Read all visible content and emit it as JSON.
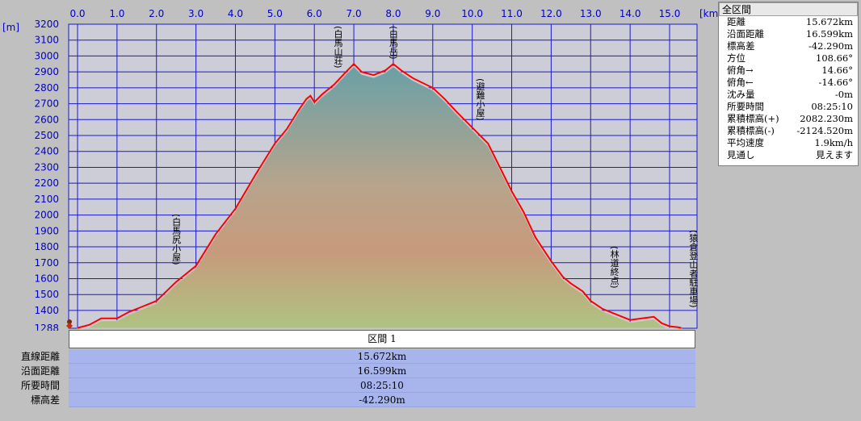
{
  "chart_data": {
    "type": "area",
    "xunit": "[km]",
    "yunit": "[m]",
    "xlim": [
      0,
      15.5
    ],
    "ylim": [
      1288,
      3200
    ],
    "x_ticks": [
      "0.0",
      "1.0",
      "2.0",
      "3.0",
      "4.0",
      "5.0",
      "6.0",
      "7.0",
      "8.0",
      "9.0",
      "10.0",
      "11.0",
      "12.0",
      "13.0",
      "14.0",
      "15.0"
    ],
    "y_ticks": [
      "1288",
      "1400",
      "1500",
      "1600",
      "1700",
      "1800",
      "1900",
      "2000",
      "2100",
      "2200",
      "2300",
      "2400",
      "2500",
      "2600",
      "2700",
      "2800",
      "2900",
      "3000",
      "3100",
      "3200"
    ],
    "grid": true,
    "series": [
      {
        "color": "#ff0000",
        "x": [
          0,
          0.3,
          0.6,
          1.0,
          1.3,
          1.6,
          2.0,
          2.5,
          3.0,
          3.5,
          4.0,
          4.5,
          5.0,
          5.3,
          5.6,
          5.8,
          5.9,
          6.0,
          6.2,
          6.5,
          6.8,
          7.0,
          7.2,
          7.5,
          7.8,
          8.0,
          8.2,
          8.5,
          9.0,
          9.3,
          9.6,
          10.0,
          10.4,
          10.8,
          11.0,
          11.3,
          11.6,
          12.0,
          12.3,
          12.5,
          12.8,
          13.0,
          13.3,
          13.6,
          14.0,
          14.3,
          14.6,
          14.8,
          15.0,
          15.2,
          15.3
        ],
        "y": [
          1290,
          1310,
          1350,
          1350,
          1390,
          1420,
          1460,
          1580,
          1680,
          1880,
          2040,
          2250,
          2450,
          2540,
          2660,
          2730,
          2750,
          2710,
          2760,
          2820,
          2900,
          2950,
          2900,
          2880,
          2910,
          2950,
          2910,
          2860,
          2800,
          2730,
          2650,
          2550,
          2450,
          2250,
          2150,
          2020,
          1860,
          1710,
          1610,
          1570,
          1520,
          1460,
          1410,
          1380,
          1340,
          1350,
          1360,
          1320,
          1300,
          1295,
          1290
        ]
      }
    ],
    "annotations": [
      {
        "text": "白馬尻小屋",
        "x": 2.5
      },
      {
        "text": "白馬山荘",
        "x": 6.6
      },
      {
        "text": "白馬岳",
        "x": 8.0
      },
      {
        "text": "避難小屋",
        "x": 10.2
      },
      {
        "text": "林道終点",
        "x": 13.6
      },
      {
        "text": "猿倉登山者駐車場",
        "x": 15.6
      }
    ]
  },
  "stats": {
    "header": "全区間",
    "rows": [
      {
        "label": "距離",
        "value": "15.672km"
      },
      {
        "label": "沿面距離",
        "value": "16.599km"
      },
      {
        "label": "標高差",
        "value": "-42.290m"
      },
      {
        "label": "方位",
        "value": "108.66°"
      },
      {
        "label": "俯角→",
        "value": "14.66°"
      },
      {
        "label": "俯角←",
        "value": "-14.66°"
      },
      {
        "label": "沈み量",
        "value": "-0m"
      },
      {
        "label": "所要時間",
        "value": "08:25:10"
      },
      {
        "label": "累積標高(+)",
        "value": "2082.230m"
      },
      {
        "label": "累積標高(-)",
        "value": "-2124.520m"
      },
      {
        "label": "平均速度",
        "value": "1.9km/h"
      },
      {
        "label": "見通し",
        "value": "見えます"
      }
    ]
  },
  "segment": {
    "title": "区間 1",
    "rows": [
      {
        "label": "直線距離",
        "value": "15.672km"
      },
      {
        "label": "沿面距離",
        "value": "16.599km"
      },
      {
        "label": "所要時間",
        "value": "08:25:10"
      },
      {
        "label": "標高差",
        "value": "-42.290m"
      }
    ]
  },
  "colors": {
    "plot_bg": "#cdcdd8",
    "grid": "#1a1acc",
    "profile_line": "#ff0000",
    "panel_bg": "#a8b4ec"
  }
}
